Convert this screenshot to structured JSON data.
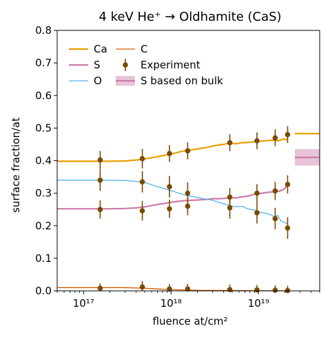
{
  "chart_data": {
    "type": "line",
    "title": "4 keV He⁺ → Oldhamite (CaS)",
    "xlabel": "fluence at/cm²",
    "ylabel": "surface fraction/at",
    "xscale": "log",
    "xlim": [
      5e+16,
      5e+19
    ],
    "ylim": [
      0,
      0.8
    ],
    "x_ticks": [
      {
        "value": 1e+17,
        "label": "10¹⁷"
      },
      {
        "value": 1e+18,
        "label": "10¹⁸"
      },
      {
        "value": 1e+19,
        "label": "10¹⁹"
      }
    ],
    "y_ticks": [
      {
        "value": 0.0,
        "label": "0.0"
      },
      {
        "value": 0.1,
        "label": "0.1"
      },
      {
        "value": 0.2,
        "label": "0.2"
      },
      {
        "value": 0.3,
        "label": "0.3"
      },
      {
        "value": 0.4,
        "label": "0.4"
      },
      {
        "value": 0.5,
        "label": "0.5"
      },
      {
        "value": 0.6,
        "label": "0.6"
      },
      {
        "value": 0.7,
        "label": "0.7"
      },
      {
        "value": 0.8,
        "label": "0.8"
      }
    ],
    "grid": false,
    "legend_position": "top-left",
    "series": [
      {
        "name": "Ca",
        "color": "#e69f00",
        "width": 2.2,
        "points": [
          [
            5e+16,
            0.398
          ],
          [
            1e+17,
            0.398
          ],
          [
            2e+17,
            0.398
          ],
          [
            3e+17,
            0.399
          ],
          [
            4e+17,
            0.402
          ],
          [
            5e+17,
            0.405
          ],
          [
            7e+17,
            0.412
          ],
          [
            1e+18,
            0.42
          ],
          [
            1.3e+18,
            0.428
          ],
          [
            1.6e+18,
            0.432
          ],
          [
            2e+18,
            0.436
          ],
          [
            2.5e+18,
            0.44
          ],
          [
            3e+18,
            0.445
          ],
          [
            3.5e+18,
            0.448
          ],
          [
            4e+18,
            0.45
          ],
          [
            4.7e+18,
            0.454
          ],
          [
            5.5e+18,
            0.452
          ],
          [
            6.5e+18,
            0.455
          ],
          [
            7.5e+18,
            0.456
          ],
          [
            9e+18,
            0.458
          ],
          [
            1.1e+19,
            0.46
          ],
          [
            1.3e+19,
            0.462
          ],
          [
            1.5e+19,
            0.463
          ],
          [
            1.7e+19,
            0.461
          ],
          [
            1.9e+19,
            0.466
          ],
          [
            2.15e+19,
            0.465
          ]
        ]
      },
      {
        "name": "S",
        "color": "#cc79a7",
        "width": 2.2,
        "points": [
          [
            5e+16,
            0.252
          ],
          [
            1e+17,
            0.252
          ],
          [
            2e+17,
            0.252
          ],
          [
            3e+17,
            0.253
          ],
          [
            4e+17,
            0.255
          ],
          [
            5e+17,
            0.258
          ],
          [
            7e+17,
            0.265
          ],
          [
            1e+18,
            0.272
          ],
          [
            1.3e+18,
            0.276
          ],
          [
            1.6e+18,
            0.278
          ],
          [
            2e+18,
            0.279
          ],
          [
            2.5e+18,
            0.281
          ],
          [
            3e+18,
            0.283
          ],
          [
            3.5e+18,
            0.283
          ],
          [
            4e+18,
            0.284
          ],
          [
            4.7e+18,
            0.286
          ],
          [
            5.5e+18,
            0.285
          ],
          [
            6.5e+18,
            0.289
          ],
          [
            7.5e+18,
            0.291
          ],
          [
            9e+18,
            0.297
          ],
          [
            1.1e+19,
            0.3
          ],
          [
            1.3e+19,
            0.303
          ],
          [
            1.5e+19,
            0.304
          ],
          [
            1.7e+19,
            0.306
          ],
          [
            1.9e+19,
            0.31
          ],
          [
            2.15e+19,
            0.324
          ]
        ]
      },
      {
        "name": "O",
        "color": "#56b4e9",
        "width": 1.3,
        "points": [
          [
            5e+16,
            0.34
          ],
          [
            1e+17,
            0.34
          ],
          [
            2e+17,
            0.34
          ],
          [
            3e+17,
            0.339
          ],
          [
            4e+17,
            0.336
          ],
          [
            5e+17,
            0.333
          ],
          [
            7e+17,
            0.32
          ],
          [
            1e+18,
            0.308
          ],
          [
            1.3e+18,
            0.298
          ],
          [
            1.6e+18,
            0.292
          ],
          [
            2e+18,
            0.287
          ],
          [
            2.5e+18,
            0.282
          ],
          [
            3e+18,
            0.278
          ],
          [
            3.5e+18,
            0.272
          ],
          [
            4e+18,
            0.268
          ],
          [
            4.7e+18,
            0.262
          ],
          [
            5.5e+18,
            0.258
          ],
          [
            6.5e+18,
            0.26
          ],
          [
            7.5e+18,
            0.252
          ],
          [
            9e+18,
            0.248
          ],
          [
            1.05e+19,
            0.242
          ],
          [
            1.2e+19,
            0.238
          ],
          [
            1.35e+19,
            0.235
          ],
          [
            1.5e+19,
            0.228
          ],
          [
            1.65e+19,
            0.232
          ],
          [
            1.8e+19,
            0.215
          ],
          [
            2e+19,
            0.21
          ],
          [
            2.15e+19,
            0.205
          ]
        ]
      },
      {
        "name": "C",
        "color": "#d55e00",
        "width": 1.3,
        "points": [
          [
            5e+16,
            0.01
          ],
          [
            1e+17,
            0.01
          ],
          [
            2e+17,
            0.01
          ],
          [
            3e+17,
            0.01
          ],
          [
            4e+17,
            0.009
          ],
          [
            5e+17,
            0.008
          ],
          [
            7e+17,
            0.006
          ],
          [
            1e+18,
            0.004
          ],
          [
            1.5e+18,
            0.003
          ],
          [
            2e+18,
            0.002
          ],
          [
            3e+18,
            0.0015
          ],
          [
            5e+18,
            0.001
          ],
          [
            1e+19,
            0.0005
          ],
          [
            2.15e+19,
            0.0003
          ]
        ]
      }
    ],
    "experiment": {
      "name": "Experiment",
      "color": "#7a4a00",
      "points": [
        {
          "x": 1.55e+17,
          "y": 0.402,
          "err": 0.028
        },
        {
          "x": 1.55e+17,
          "y": 0.34,
          "err": 0.033
        },
        {
          "x": 1.55e+17,
          "y": 0.25,
          "err": 0.028
        },
        {
          "x": 1.55e+17,
          "y": 0.008,
          "err": 0.015
        },
        {
          "x": 4.7e+17,
          "y": 0.406,
          "err": 0.03
        },
        {
          "x": 4.7e+17,
          "y": 0.335,
          "err": 0.033
        },
        {
          "x": 4.7e+17,
          "y": 0.246,
          "err": 0.03
        },
        {
          "x": 4.7e+17,
          "y": 0.012,
          "err": 0.018
        },
        {
          "x": 9.6e+17,
          "y": 0.422,
          "err": 0.026
        },
        {
          "x": 9.6e+17,
          "y": 0.32,
          "err": 0.033
        },
        {
          "x": 9.6e+17,
          "y": 0.252,
          "err": 0.028
        },
        {
          "x": 9.6e+17,
          "y": 0.006,
          "err": 0.015
        },
        {
          "x": 1.55e+18,
          "y": 0.43,
          "err": 0.026
        },
        {
          "x": 1.55e+18,
          "y": 0.3,
          "err": 0.033
        },
        {
          "x": 1.55e+18,
          "y": 0.26,
          "err": 0.028
        },
        {
          "x": 1.55e+18,
          "y": 0.006,
          "err": 0.015
        },
        {
          "x": 4.7e+18,
          "y": 0.455,
          "err": 0.026
        },
        {
          "x": 4.7e+18,
          "y": 0.255,
          "err": 0.033
        },
        {
          "x": 4.7e+18,
          "y": 0.288,
          "err": 0.028
        },
        {
          "x": 4.7e+18,
          "y": 0.004,
          "err": 0.015
        },
        {
          "x": 9.6e+18,
          "y": 0.461,
          "err": 0.026
        },
        {
          "x": 9.6e+18,
          "y": 0.24,
          "err": 0.033
        },
        {
          "x": 9.6e+18,
          "y": 0.3,
          "err": 0.028
        },
        {
          "x": 9.6e+18,
          "y": 0.003,
          "err": 0.015
        },
        {
          "x": 1.55e+19,
          "y": 0.47,
          "err": 0.026
        },
        {
          "x": 1.55e+19,
          "y": 0.222,
          "err": 0.033
        },
        {
          "x": 1.55e+19,
          "y": 0.307,
          "err": 0.028
        },
        {
          "x": 1.55e+19,
          "y": 0.002,
          "err": 0.015
        },
        {
          "x": 2.15e+19,
          "y": 0.48,
          "err": 0.026
        },
        {
          "x": 2.15e+19,
          "y": 0.193,
          "err": 0.033
        },
        {
          "x": 2.15e+19,
          "y": 0.327,
          "err": 0.028
        },
        {
          "x": 2.15e+19,
          "y": 0.001,
          "err": 0.015
        }
      ]
    },
    "bulk_reference": [
      {
        "name": "Ca bulk",
        "color": "#e69f00",
        "x_start": 2.6e+19,
        "x_end": 5e+19,
        "y": 0.483
      },
      {
        "name": "S based on bulk",
        "color": "#cc79a7",
        "x_start": 2.6e+19,
        "x_end": 5e+19,
        "y": 0.41,
        "band": [
          0.385,
          0.435
        ]
      }
    ],
    "legend": {
      "col1": [
        "Ca",
        "S",
        "O"
      ],
      "col2": [
        "C",
        "Experiment",
        "S based on bulk"
      ]
    }
  }
}
